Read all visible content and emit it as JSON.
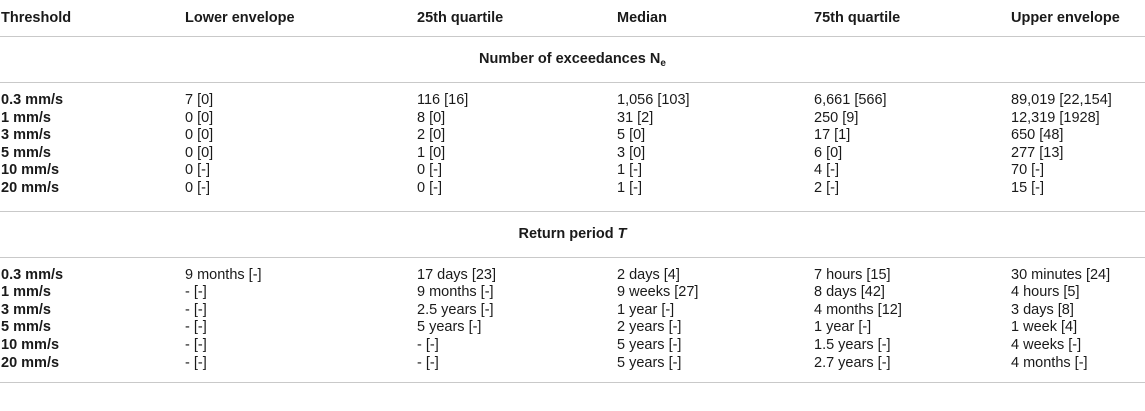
{
  "headers": [
    "Threshold",
    "Lower envelope",
    "25th quartile",
    "Median",
    "75th quartile",
    "Upper envelope"
  ],
  "sections": [
    {
      "title": "Number of exceedances N",
      "title_sub": "e",
      "title_italic": "",
      "rows": [
        [
          "0.3 mm/s",
          "7 [0]",
          "116 [16]",
          "1,056 [103]",
          "6,661 [566]",
          "89,019 [22,154]"
        ],
        [
          "1 mm/s",
          "0 [0]",
          "8 [0]",
          "31 [2]",
          "250 [9]",
          "12,319 [1928]"
        ],
        [
          "3 mm/s",
          "0 [0]",
          "2 [0]",
          "5 [0]",
          "17 [1]",
          "650 [48]"
        ],
        [
          "5 mm/s",
          "0 [0]",
          "1 [0]",
          "3 [0]",
          "6 [0]",
          "277 [13]"
        ],
        [
          "10 mm/s",
          "0 [-]",
          "0 [-]",
          "1 [-]",
          "4 [-]",
          "70 [-]"
        ],
        [
          "20 mm/s",
          "0 [-]",
          "0 [-]",
          "1 [-]",
          "2 [-]",
          "15 [-]"
        ]
      ]
    },
    {
      "title": "Return period ",
      "title_sub": "",
      "title_italic": "T",
      "rows": [
        [
          "0.3 mm/s",
          "9 months [-]",
          "17 days [23]",
          "2 days [4]",
          "7 hours [15]",
          "30 minutes [24]"
        ],
        [
          "1 mm/s",
          "- [-]",
          "9 months [-]",
          "9 weeks [27]",
          "8 days [42]",
          "4 hours [5]"
        ],
        [
          "3 mm/s",
          "- [-]",
          "2.5 years [-]",
          "1 year [-]",
          "4 months [12]",
          "3 days [8]"
        ],
        [
          "5 mm/s",
          "- [-]",
          "5 years [-]",
          "2 years [-]",
          "1 year [-]",
          "1 week [4]"
        ],
        [
          "10 mm/s",
          "- [-]",
          "- [-]",
          "5 years [-]",
          "1.5 years [-]",
          "4 weeks [-]"
        ],
        [
          "20 mm/s",
          "- [-]",
          "- [-]",
          "5 years [-]",
          "2.7 years [-]",
          "4 months [-]"
        ]
      ]
    }
  ]
}
